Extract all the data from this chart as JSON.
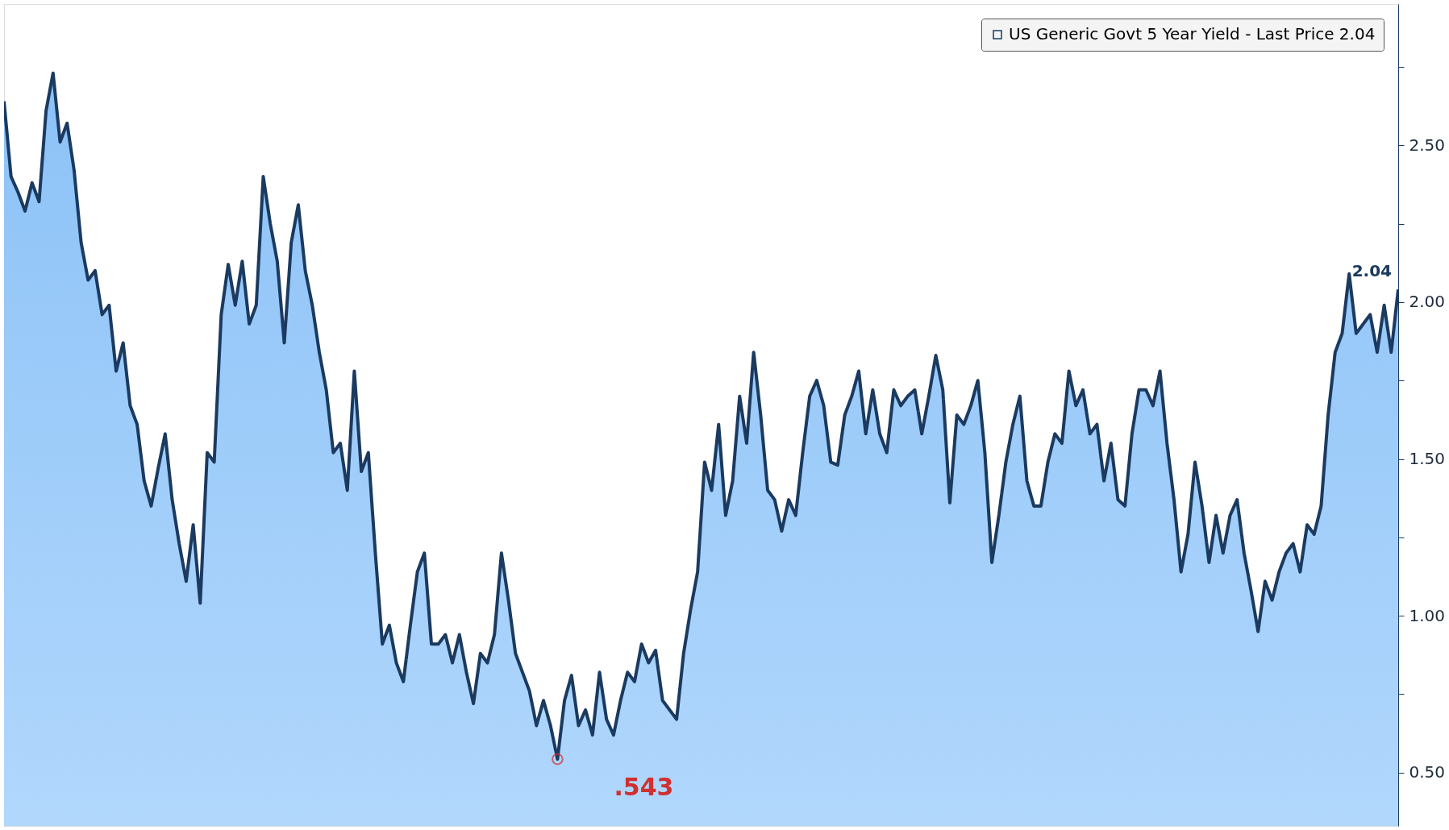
{
  "chart_data": {
    "type": "area",
    "legend": "top right",
    "grid": false,
    "marker": "none",
    "line_style": "solid",
    "categories": [
      null,
      null,
      null,
      null,
      null,
      null,
      null,
      null,
      null,
      null,
      null,
      null,
      null,
      null,
      null,
      null,
      null,
      null,
      null,
      null,
      null,
      null,
      null,
      null,
      null,
      null,
      null,
      null,
      null,
      null,
      null,
      null,
      null,
      null,
      null,
      null,
      null,
      null,
      null,
      null,
      null,
      null,
      null,
      null,
      null,
      null,
      null,
      null,
      null,
      null,
      null,
      null,
      null,
      null,
      null,
      null,
      null,
      null,
      null,
      null,
      null,
      null,
      null,
      null,
      null,
      null,
      null,
      null,
      null,
      null,
      null,
      null,
      null,
      null,
      null,
      null,
      null,
      null,
      null,
      null,
      null,
      null,
      null,
      null,
      null,
      null,
      null,
      null,
      null,
      null,
      null,
      null,
      null,
      null,
      null,
      null,
      null,
      null,
      null,
      null,
      null,
      null,
      null,
      null,
      null,
      null,
      null,
      null,
      null,
      null,
      null,
      null,
      null,
      null,
      null,
      null,
      null,
      null,
      null,
      null,
      null,
      null,
      null,
      null,
      null,
      null,
      null,
      null,
      null,
      null,
      null,
      null,
      null,
      null,
      null,
      null,
      null,
      null,
      null,
      null,
      null,
      null,
      null,
      null,
      null,
      null,
      null,
      null,
      null,
      null,
      null,
      null,
      null,
      null,
      null,
      null,
      null,
      null,
      null,
      null,
      null,
      null,
      null,
      null,
      null,
      null,
      null,
      null,
      null,
      null,
      null,
      null,
      null,
      null,
      null,
      null,
      null,
      null,
      null,
      null,
      null,
      null,
      null,
      null,
      null,
      null,
      null,
      null,
      null,
      null,
      null,
      null,
      null,
      null,
      null,
      null,
      null,
      null,
      null,
      null
    ],
    "series": [
      {
        "name": "US Generic Govt 5 Year Yield - Last Price 2.04",
        "color": "#1b3a60",
        "values": [
          2.64,
          2.4,
          2.35,
          2.29,
          2.38,
          2.32,
          2.61,
          2.73,
          2.51,
          2.57,
          2.42,
          2.19,
          2.07,
          2.1,
          1.96,
          1.99,
          1.78,
          1.87,
          1.67,
          1.61,
          1.43,
          1.35,
          1.47,
          1.58,
          1.37,
          1.23,
          1.11,
          1.29,
          1.04,
          1.52,
          1.49,
          1.96,
          2.12,
          1.99,
          2.13,
          1.93,
          1.99,
          2.4,
          2.25,
          2.13,
          1.87,
          2.19,
          2.31,
          2.1,
          1.99,
          1.84,
          1.72,
          1.52,
          1.55,
          1.4,
          1.78,
          1.46,
          1.52,
          1.2,
          0.91,
          0.97,
          0.85,
          0.79,
          0.97,
          1.14,
          1.2,
          0.91,
          0.91,
          0.94,
          0.85,
          0.94,
          0.82,
          0.72,
          0.88,
          0.85,
          0.94,
          1.2,
          1.05,
          0.88,
          0.82,
          0.76,
          0.65,
          0.73,
          0.65,
          0.543,
          0.73,
          0.81,
          0.65,
          0.7,
          0.62,
          0.82,
          0.67,
          0.62,
          0.73,
          0.82,
          0.79,
          0.91,
          0.85,
          0.89,
          0.73,
          0.7,
          0.67,
          0.88,
          1.02,
          1.14,
          1.49,
          1.4,
          1.61,
          1.32,
          1.43,
          1.7,
          1.55,
          1.84,
          1.64,
          1.4,
          1.37,
          1.27,
          1.37,
          1.32,
          1.52,
          1.7,
          1.75,
          1.67,
          1.49,
          1.48,
          1.64,
          1.7,
          1.78,
          1.58,
          1.72,
          1.58,
          1.52,
          1.72,
          1.67,
          1.7,
          1.72,
          1.58,
          1.7,
          1.83,
          1.72,
          1.36,
          1.64,
          1.61,
          1.67,
          1.75,
          1.52,
          1.17,
          1.32,
          1.49,
          1.61,
          1.7,
          1.43,
          1.35,
          1.35,
          1.49,
          1.58,
          1.55,
          1.78,
          1.67,
          1.72,
          1.58,
          1.61,
          1.43,
          1.55,
          1.37,
          1.35,
          1.58,
          1.72,
          1.72,
          1.67,
          1.78,
          1.55,
          1.37,
          1.14,
          1.26,
          1.49,
          1.35,
          1.17,
          1.32,
          1.2,
          1.32,
          1.37,
          1.2,
          1.08,
          0.95,
          1.11,
          1.05,
          1.14,
          1.2,
          1.23,
          1.14,
          1.29,
          1.26,
          1.35,
          1.64,
          1.84,
          1.9,
          2.09,
          1.9,
          1.93,
          1.96,
          1.84,
          1.99,
          1.84,
          2.04
        ]
      }
    ],
    "ylim": [
      0.33,
      2.95
    ],
    "yticks": [
      {
        "value": 0.5,
        "label": "0.50"
      },
      {
        "value": 0.75,
        "label": null
      },
      {
        "value": 1.0,
        "label": "1.00"
      },
      {
        "value": 1.25,
        "label": null
      },
      {
        "value": 1.5,
        "label": "1.50"
      },
      {
        "value": 1.75,
        "label": null
      },
      {
        "value": 2.0,
        "label": "2.00"
      },
      {
        "value": 2.25,
        "label": null
      },
      {
        "value": 2.5,
        "label": "2.50"
      },
      {
        "value": 2.75,
        "label": null
      }
    ],
    "annotations": [
      ".543",
      "2.04"
    ]
  }
}
